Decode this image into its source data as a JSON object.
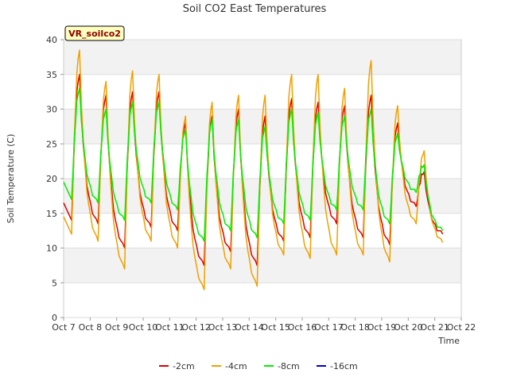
{
  "chart_data": {
    "type": "line",
    "title": "Soil CO2 East Temperatures",
    "xlabel": "Time",
    "ylabel": "Soil Temperature (C)",
    "badge": "VR_soilco2",
    "ylim": [
      0,
      40
    ],
    "xlim": [
      0,
      15
    ],
    "y_ticks": [
      0,
      5,
      10,
      15,
      20,
      25,
      30,
      35,
      40
    ],
    "x_tick_labels": [
      "Oct 7",
      "Oct 8",
      "Oct 9",
      "Oct 10",
      "Oct 11",
      "Oct 12",
      "Oct 13",
      "Oct 14",
      "Oct 15",
      "Oct 16",
      "Oct 17",
      "Oct 18",
      "Oct 19",
      "Oct 20",
      "Oct 21",
      "Oct 22"
    ],
    "grid": true,
    "legend_position": "bottom",
    "daily_extremes": {
      "days": [
        "Oct 7",
        "Oct 8",
        "Oct 9",
        "Oct 10",
        "Oct 11",
        "Oct 12",
        "Oct 13",
        "Oct 14",
        "Oct 15",
        "Oct 16",
        "Oct 17",
        "Oct 18",
        "Oct 19",
        "Oct 20",
        "Oct 21"
      ]
    },
    "series": [
      {
        "name": "-2cm",
        "color": "#dd0000",
        "start": 16.5,
        "peaks": [
          35.0,
          32.0,
          32.5,
          32.5,
          28.0,
          29.0,
          30.0,
          29.0,
          31.5,
          31.0,
          30.5,
          32.0,
          28.0,
          21.0
        ],
        "troughs": [
          13.5,
          10.0,
          13.0,
          12.5,
          7.5,
          9.5,
          7.5,
          11.0,
          11.5,
          13.5,
          11.5,
          10.5,
          16.0,
          14.0
        ],
        "end": 12.0
      },
      {
        "name": "-4cm",
        "color": "#f0a000",
        "start": 14.5,
        "peaks": [
          38.5,
          34.0,
          35.5,
          35.0,
          29.0,
          31.0,
          32.0,
          32.0,
          35.0,
          35.0,
          33.0,
          37.0,
          30.5,
          24.0
        ],
        "troughs": [
          11.0,
          7.0,
          11.0,
          10.0,
          4.0,
          7.0,
          4.5,
          9.0,
          8.5,
          9.0,
          9.0,
          8.0,
          13.5,
          12.5
        ],
        "end": 10.8
      },
      {
        "name": "-8cm",
        "color": "#00ee00",
        "start": 19.5,
        "peaks": [
          33.0,
          30.0,
          31.0,
          31.0,
          27.0,
          28.5,
          28.5,
          27.5,
          30.0,
          29.5,
          29.0,
          30.0,
          26.5,
          22.0
        ],
        "troughs": [
          16.5,
          14.0,
          16.5,
          15.5,
          11.0,
          12.5,
          11.5,
          13.5,
          14.0,
          15.5,
          15.5,
          13.5,
          18.0,
          14.5
        ],
        "end": 12.5
      },
      {
        "name": "-16cm",
        "color": "#0000cc",
        "start": null,
        "peaks": [],
        "troughs": [],
        "end": null
      }
    ]
  }
}
